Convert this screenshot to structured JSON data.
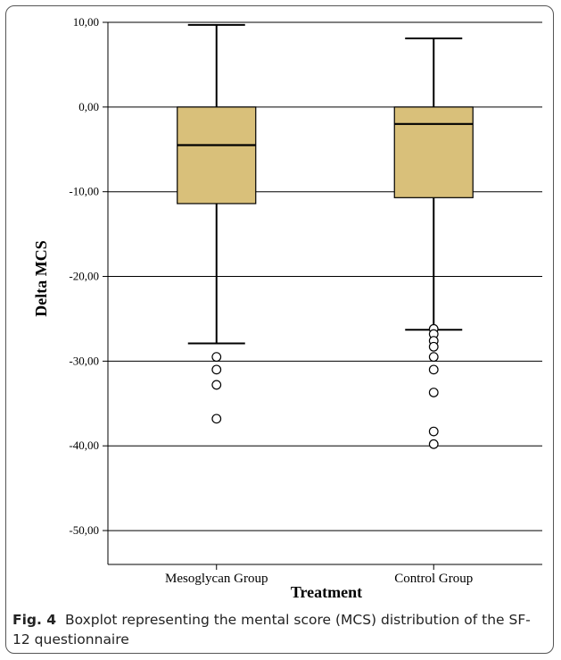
{
  "chart_data": {
    "type": "boxplot",
    "xlabel": "Treatment",
    "ylabel": "Delta MCS",
    "ylim": [
      -54,
      10
    ],
    "yticks": [
      10,
      0,
      -10,
      -20,
      -30,
      -40,
      -50
    ],
    "ytick_labels": [
      "10,00",
      "0,00",
      "-10,00",
      "-20,00",
      "-30,00",
      "-40,00",
      "-50,00"
    ],
    "grid": true,
    "box_color": "#d9c07a",
    "categories": [
      "Mesoglycan Group",
      "Control Group"
    ],
    "boxes": [
      {
        "category": "Mesoglycan Group",
        "whisker_high": 9.7,
        "q3": 0.0,
        "median": -4.5,
        "q1": -11.4,
        "whisker_low": -27.9,
        "outliers": [
          -29.5,
          -31.0,
          -32.8,
          -36.8
        ]
      },
      {
        "category": "Control Group",
        "whisker_high": 8.1,
        "q3": 0.0,
        "median": -2.0,
        "q1": -10.7,
        "whisker_low": -26.3,
        "outliers": [
          -26.2,
          -26.8,
          -27.6,
          -28.3,
          -29.5,
          -31.0,
          -33.7,
          -38.3,
          -39.8
        ]
      }
    ]
  },
  "caption": {
    "label": "Fig. 4",
    "text": "Boxplot representing the mental score (MCS) distribution of the SF-12 questionnaire"
  }
}
